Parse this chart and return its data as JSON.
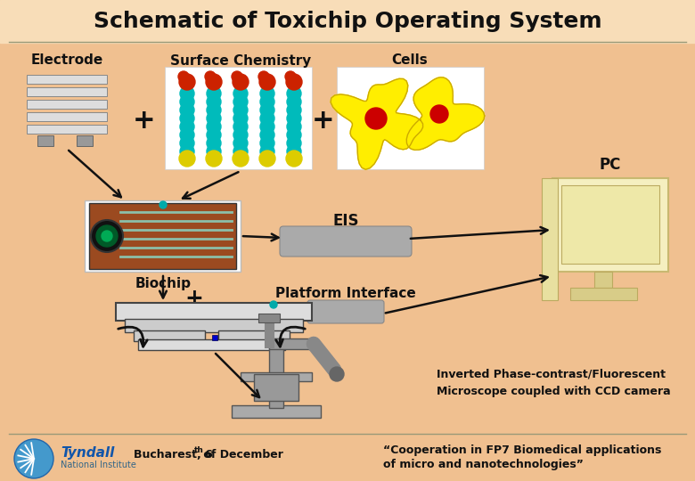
{
  "title": "Schematic of Toxichip Operating System",
  "bg_color": "#F0C090",
  "title_color": "#111111",
  "title_fontsize": 18,
  "label_electrode": "Electrode",
  "label_surface": "Surface Chemistry",
  "label_cells": "Cells",
  "label_pc": "PC",
  "label_eis": "EIS",
  "label_biochip": "Biochip",
  "label_platform": "Platform Interface",
  "label_microscope_line1": "Inverted Phase-contrast/Fluorescent",
  "label_microscope_line2": "Microscope coupled with CCD camera",
  "footer_left": "Bucharest, 6",
  "footer_left_super": "th",
  "footer_left2": " of December",
  "footer_right_line1": "“Cooperation in FP7 Biomedical applications",
  "footer_right_line2": "of micro and nanotechnologies”",
  "separator_color": "#999977",
  "arrow_color": "#111111",
  "plus_color": "#111111",
  "line_color": "#999977",
  "elec_color": "#999999",
  "chip_bg": "#8B3A1A",
  "chip_teal": "#00AAAA",
  "pc_color": "#F5EFC0",
  "eis_color": "#AAAAAA",
  "mol_teal": "#00BBBB",
  "mol_red": "#CC2200",
  "mol_yellow": "#DDCC00",
  "cell_yellow": "#FFEE00",
  "cell_outline": "#CCAA00",
  "cell_nucleus": "#CC0000",
  "tyndall_blue": "#4499CC"
}
